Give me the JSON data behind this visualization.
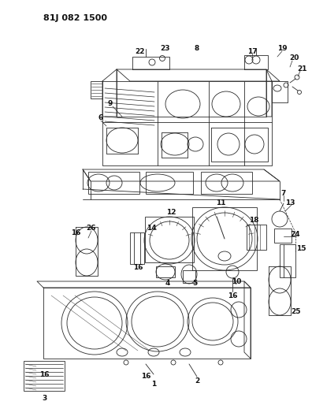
{
  "title": "81J 082 1500",
  "bg_color": "#ffffff",
  "lc": "#2a2a2a",
  "lw": 0.6,
  "fig_width": 3.96,
  "fig_height": 5.33,
  "dpi": 100,
  "title_fs": 8,
  "label_fs": 6.5
}
